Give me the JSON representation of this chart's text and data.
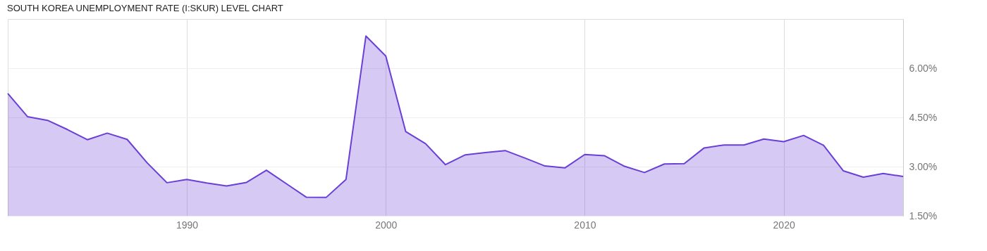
{
  "chart_data": {
    "type": "area",
    "title": "SOUTH KOREA UNEMPLOYMENT RATE (I:SKUR) LEVEL CHART",
    "x": [
      1981,
      1982,
      1983,
      1984,
      1985,
      1986,
      1987,
      1988,
      1989,
      1990,
      1991,
      1992,
      1993,
      1994,
      1995,
      1996,
      1997,
      1998,
      1999,
      2000,
      2001,
      2002,
      2003,
      2004,
      2005,
      2006,
      2007,
      2008,
      2009,
      2010,
      2011,
      2012,
      2013,
      2014,
      2015,
      2016,
      2017,
      2018,
      2019,
      2020,
      2021,
      2022,
      2023,
      2024,
      2025,
      2026
    ],
    "series": [
      {
        "color": "#6a3fd6",
        "values": [
          5.23,
          4.52,
          4.41,
          4.13,
          3.82,
          4.02,
          3.83,
          3.12,
          2.51,
          2.61,
          2.5,
          2.41,
          2.52,
          2.89,
          2.48,
          2.07,
          2.06,
          2.61,
          6.98,
          6.37,
          4.07,
          3.7,
          3.06,
          3.36,
          3.43,
          3.49,
          3.26,
          3.02,
          2.96,
          3.37,
          3.33,
          3.01,
          2.82,
          3.08,
          3.09,
          3.57,
          3.66,
          3.66,
          3.84,
          3.76,
          3.95,
          3.65,
          2.87,
          2.68,
          2.79,
          2.7
        ]
      }
    ],
    "xlim": [
      1981,
      2026
    ],
    "xticks": [
      1990,
      2000,
      2010,
      2020
    ],
    "ylim": [
      1.5,
      7.5
    ],
    "yticks": [
      {
        "value": 1.5,
        "label": "1.50%"
      },
      {
        "value": 3,
        "label": "3.00%"
      },
      {
        "value": 4.5,
        "label": "4.50%"
      },
      {
        "value": 6,
        "label": "6.00%"
      }
    ],
    "grid": true
  }
}
